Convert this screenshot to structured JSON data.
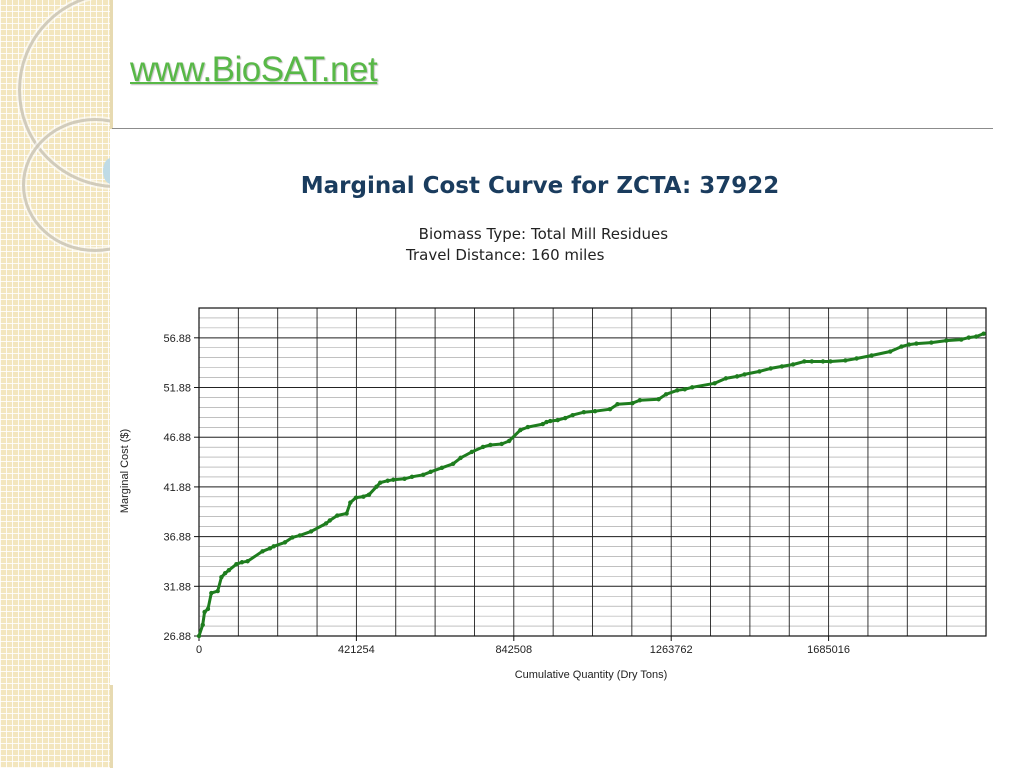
{
  "header": {
    "site_link": "www.BioSAT.net"
  },
  "colors": {
    "link": "#58b847",
    "title": "#1a3c5e",
    "series": "#1e7d1e",
    "strip": "#f3e6be"
  },
  "chart_data": {
    "type": "line",
    "title": "Marginal Cost Curve for ZCTA: 37922",
    "subtitle_lines": [
      {
        "label": "Biomass Type:",
        "value": "Total Mill Residues"
      },
      {
        "label": "Travel Distance:",
        "value": "160 miles"
      }
    ],
    "xlabel": "Cumulative Quantity (Dry Tons)",
    "ylabel": "Marginal Cost ($)",
    "xlim": [
      0,
      2106270
    ],
    "ylim": [
      26.88,
      59.88
    ],
    "x_ticks": [
      0,
      421254,
      842508,
      1263762,
      1685016
    ],
    "x_tick_labels": [
      "0",
      "421254",
      "842508",
      "1263762",
      "1685016"
    ],
    "y_ticks": [
      26.88,
      31.88,
      36.88,
      41.88,
      46.88,
      51.88,
      56.88
    ],
    "y_tick_labels": [
      "26.88",
      "31.88",
      "36.88",
      "41.88",
      "46.88",
      "51.88",
      "56.88"
    ],
    "grid": true,
    "legend": "none",
    "series": [
      {
        "x": [
          0,
          10000,
          15000,
          24000,
          33000,
          50000,
          60000,
          70000,
          80000,
          100000,
          115000,
          130000,
          170000,
          190000,
          200000,
          230000,
          250000,
          270000,
          300000,
          340000,
          350000,
          370000,
          395000,
          405000,
          420000,
          440000,
          455000,
          475000,
          485000,
          505000,
          520000,
          550000,
          570000,
          600000,
          620000,
          650000,
          680000,
          700000,
          730000,
          760000,
          780000,
          810000,
          830000,
          860000,
          880000,
          920000,
          930000,
          940000,
          960000,
          980000,
          1000000,
          1030000,
          1060000,
          1100000,
          1120000,
          1160000,
          1180000,
          1230000,
          1250000,
          1280000,
          1300000,
          1320000,
          1380000,
          1410000,
          1440000,
          1460000,
          1500000,
          1530000,
          1560000,
          1590000,
          1620000,
          1640000,
          1670000,
          1690000,
          1730000,
          1760000,
          1800000,
          1850000,
          1880000,
          1900000,
          1920000,
          1960000,
          2000000,
          2040000,
          2060000,
          2080000,
          2100000
        ],
        "y": [
          26.88,
          28.0,
          29.3,
          29.6,
          31.2,
          31.4,
          32.8,
          33.2,
          33.5,
          34.1,
          34.3,
          34.4,
          35.4,
          35.7,
          35.9,
          36.3,
          36.8,
          37.0,
          37.4,
          38.2,
          38.5,
          39.0,
          39.2,
          40.3,
          40.8,
          40.9,
          41.1,
          41.9,
          42.3,
          42.5,
          42.6,
          42.7,
          42.9,
          43.1,
          43.4,
          43.8,
          44.2,
          44.8,
          45.4,
          45.9,
          46.1,
          46.2,
          46.5,
          47.6,
          47.9,
          48.2,
          48.4,
          48.5,
          48.6,
          48.8,
          49.1,
          49.4,
          49.5,
          49.7,
          50.2,
          50.3,
          50.6,
          50.7,
          51.2,
          51.6,
          51.7,
          51.9,
          52.3,
          52.8,
          53.0,
          53.2,
          53.5,
          53.8,
          54.0,
          54.2,
          54.5,
          54.5,
          54.5,
          54.5,
          54.6,
          54.8,
          55.1,
          55.5,
          56.0,
          56.2,
          56.3,
          56.4,
          56.6,
          56.7,
          56.9,
          57.0,
          57.3
        ]
      }
    ]
  }
}
